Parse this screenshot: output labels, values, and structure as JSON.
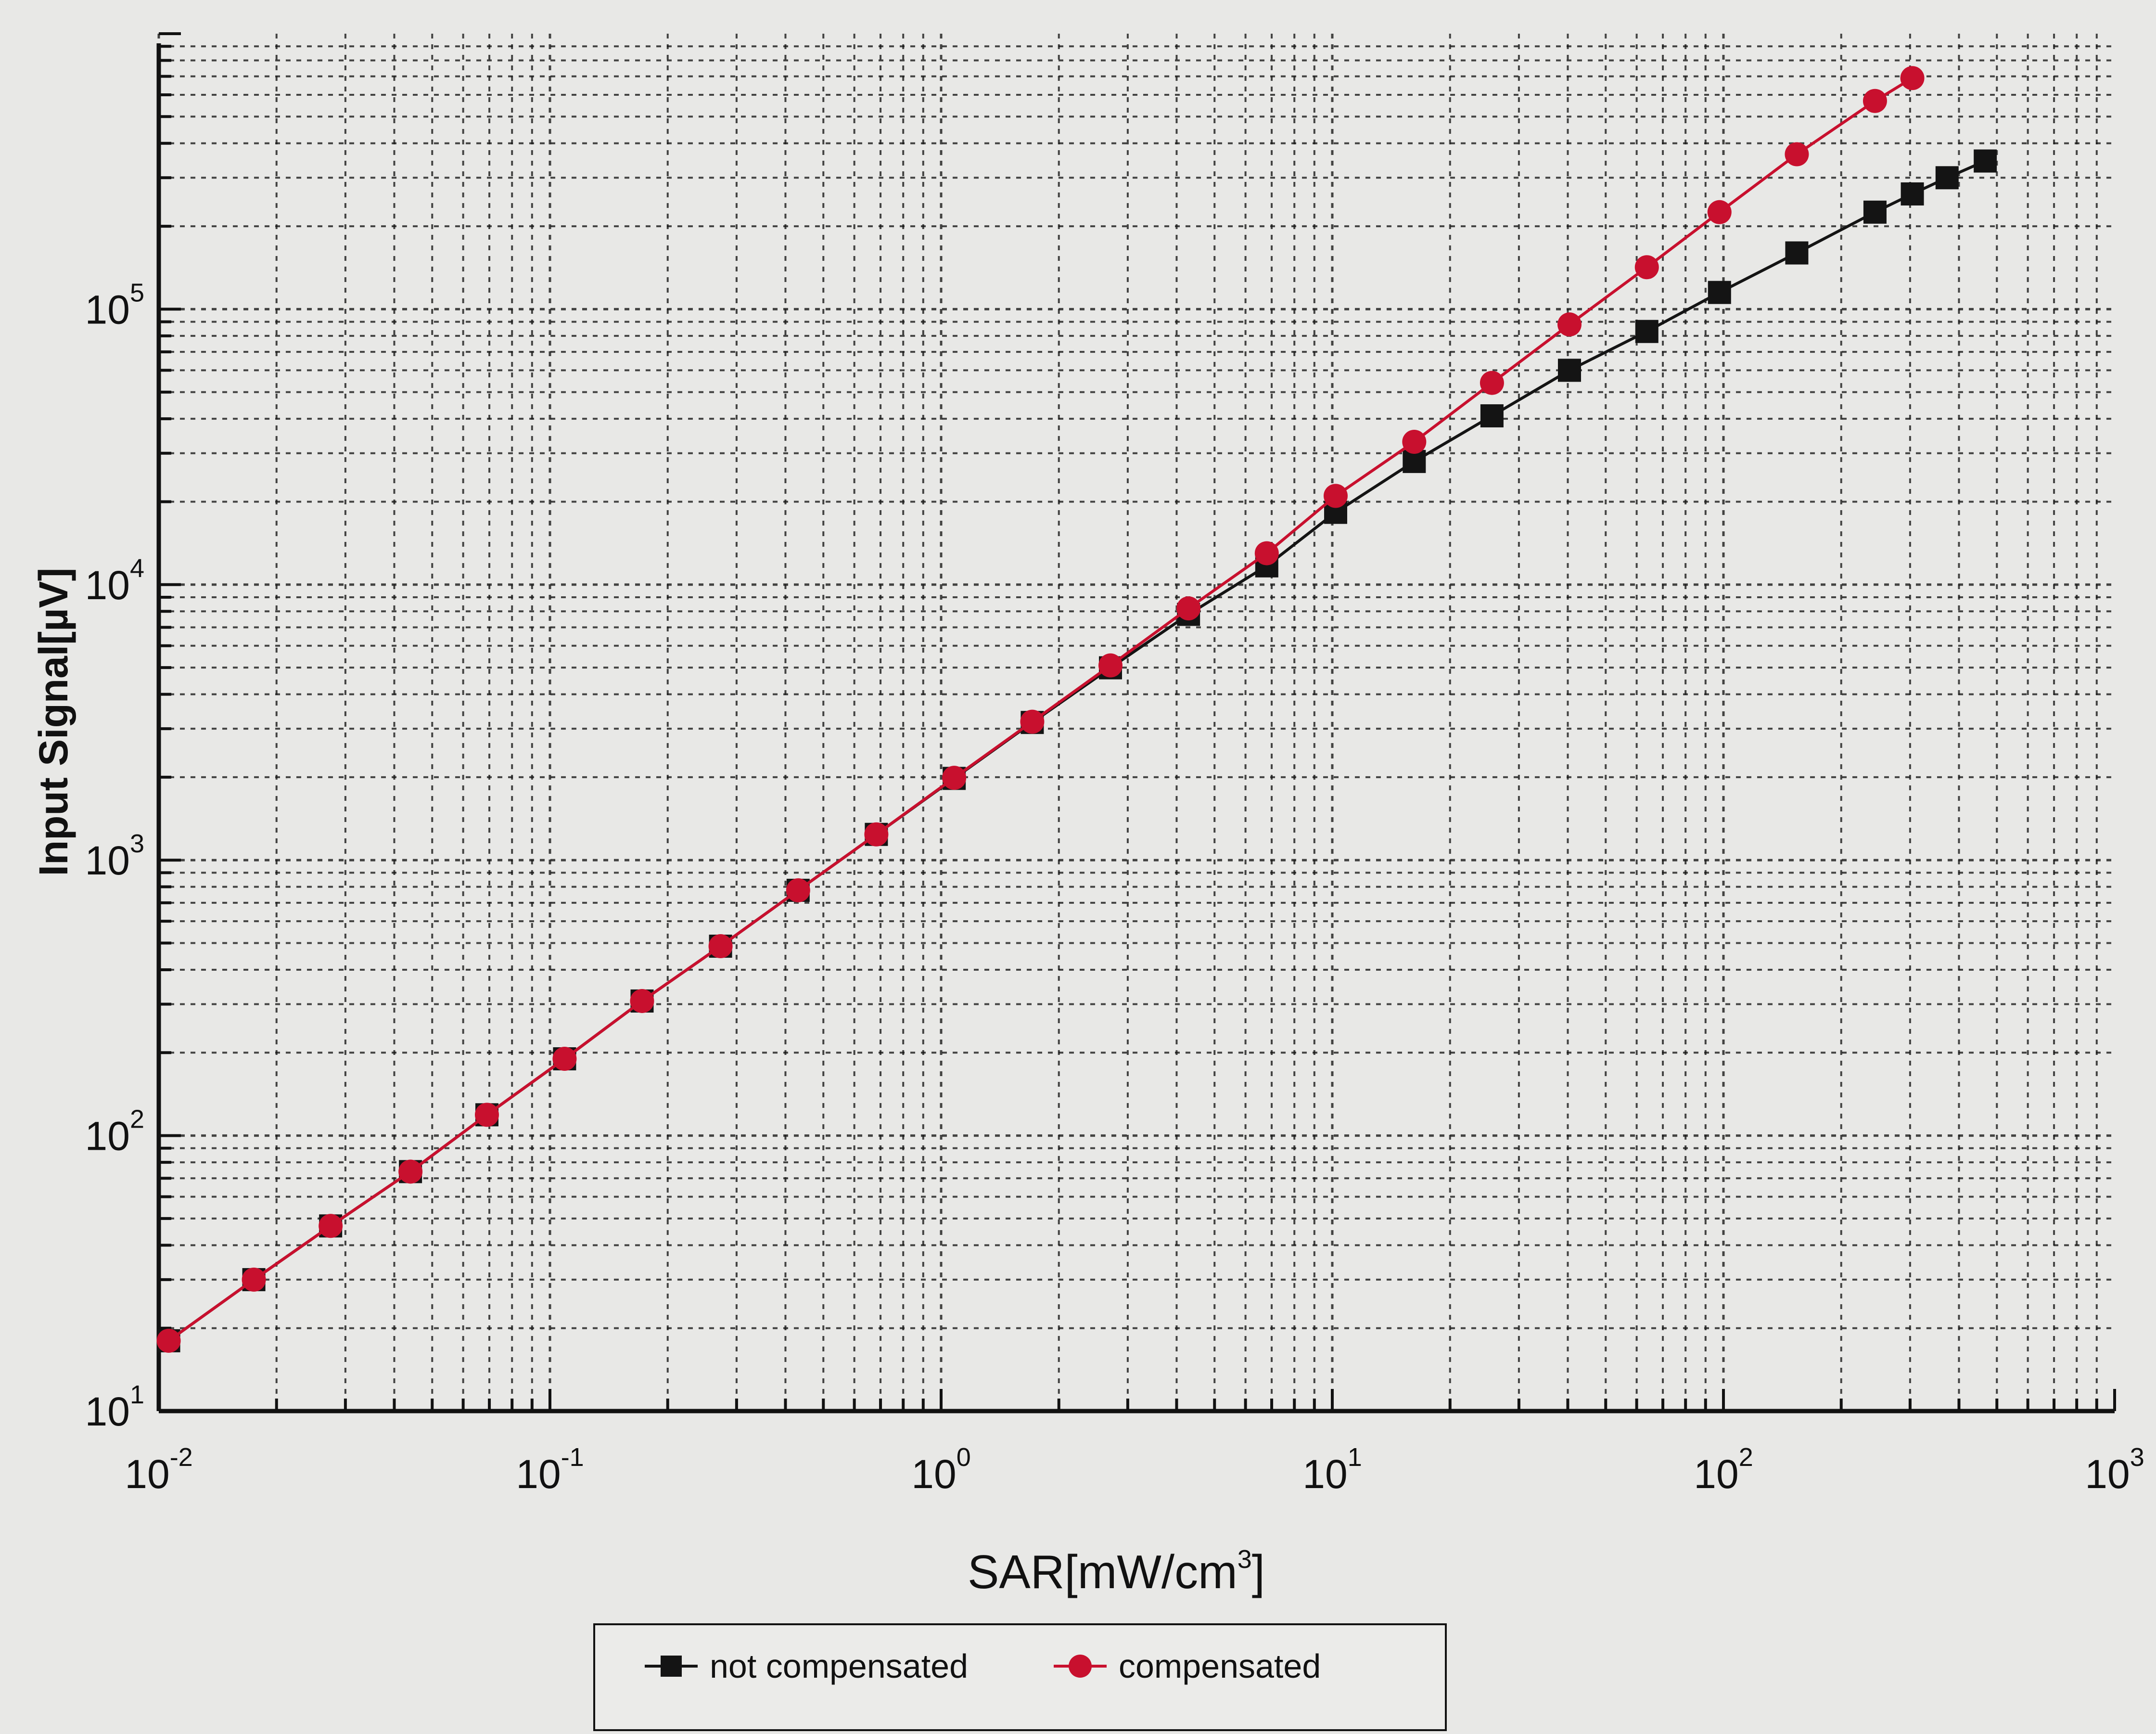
{
  "chart_data": {
    "type": "line",
    "xscale": "log",
    "yscale": "log",
    "xlim": [
      0.01,
      1000
    ],
    "ylim": [
      10,
      1000000
    ],
    "grid": true,
    "legend_position": "bottom",
    "xlabel_parts": {
      "base": "SAR[mW/cm",
      "sup": "3",
      "close": "]"
    },
    "ylabel": "Input Signal[µV]",
    "xticks": [
      {
        "base": "10",
        "exp": "-2"
      },
      {
        "base": "10",
        "exp": "-1"
      },
      {
        "base": "10",
        "exp": "0"
      },
      {
        "base": "10",
        "exp": "1"
      },
      {
        "base": "10",
        "exp": "2"
      },
      {
        "base": "10",
        "exp": "3"
      }
    ],
    "yticks": [
      {
        "base": "10",
        "exp": "1"
      },
      {
        "base": "10",
        "exp": "2"
      },
      {
        "base": "10",
        "exp": "3"
      },
      {
        "base": "10",
        "exp": "4"
      },
      {
        "base": "10",
        "exp": "5"
      }
    ],
    "series": [
      {
        "name": "not compensated",
        "color": "#141414",
        "marker": "square",
        "points": [
          [
            0.0106,
            18
          ],
          [
            0.0175,
            30
          ],
          [
            0.0275,
            47
          ],
          [
            0.044,
            74
          ],
          [
            0.069,
            119
          ],
          [
            0.109,
            190
          ],
          [
            0.172,
            308
          ],
          [
            0.273,
            487
          ],
          [
            0.431,
            777
          ],
          [
            0.683,
            1240
          ],
          [
            1.08,
            1980
          ],
          [
            1.71,
            3160
          ],
          [
            2.71,
            4990
          ],
          [
            4.29,
            7800
          ],
          [
            6.8,
            11700
          ],
          [
            10.2,
            18300
          ],
          [
            16.2,
            28000
          ],
          [
            25.6,
            41000
          ],
          [
            40.4,
            60000
          ],
          [
            63.7,
            83000
          ],
          [
            97.7,
            115000
          ],
          [
            154,
            160000
          ],
          [
            244,
            225000
          ],
          [
            304,
            262000
          ],
          [
            373,
            300000
          ],
          [
            467,
            345000
          ]
        ]
      },
      {
        "name": "compensated",
        "color": "#c8102e",
        "marker": "circle",
        "points": [
          [
            0.0106,
            18
          ],
          [
            0.0175,
            30
          ],
          [
            0.0275,
            47
          ],
          [
            0.044,
            74
          ],
          [
            0.069,
            119
          ],
          [
            0.109,
            190
          ],
          [
            0.172,
            308
          ],
          [
            0.273,
            487
          ],
          [
            0.431,
            777
          ],
          [
            0.683,
            1240
          ],
          [
            1.08,
            1990
          ],
          [
            1.71,
            3180
          ],
          [
            2.71,
            5090
          ],
          [
            4.29,
            8200
          ],
          [
            6.8,
            13000
          ],
          [
            10.2,
            21000
          ],
          [
            16.2,
            33000
          ],
          [
            25.6,
            54000
          ],
          [
            40.4,
            88000
          ],
          [
            63.7,
            142000
          ],
          [
            97.7,
            225000
          ],
          [
            154,
            365000
          ],
          [
            244,
            570000
          ],
          [
            304,
            690000
          ]
        ]
      }
    ]
  },
  "colors": {
    "background": "#e8e8e6",
    "axis": "#111111",
    "grid": "#1a1a1a"
  }
}
